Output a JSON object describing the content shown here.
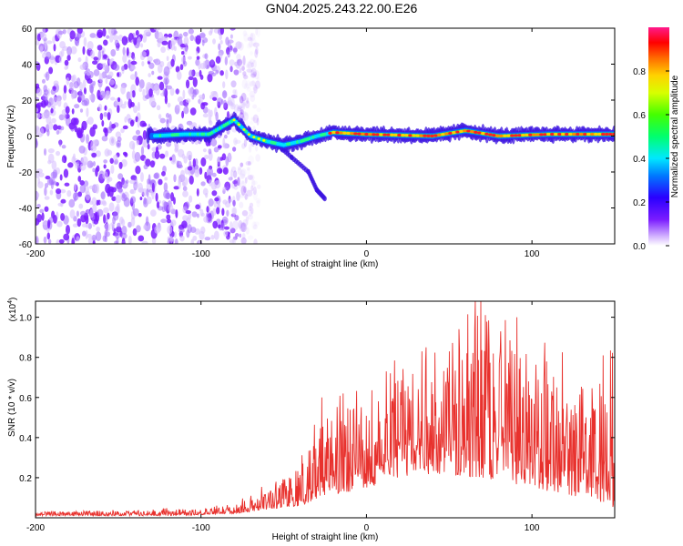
{
  "title": "GN04.2025.243.22.00.E26",
  "colors": {
    "snr_line": "#e8312d",
    "speckle": "#7b2cff",
    "spectrogram_bg": "#ffffff"
  },
  "chart_data": [
    {
      "type": "heatmap",
      "name": "spectrogram",
      "xlabel": "Height of straight line (km)",
      "ylabel": "Frequency (Hz)",
      "xlim": [
        -200,
        150
      ],
      "ylim": [
        -60,
        60
      ],
      "xticks": [
        -200,
        -100,
        0,
        100
      ],
      "yticks": [
        60,
        40,
        20,
        0,
        -20,
        -40,
        -60
      ],
      "xtick_labels": [
        "-200",
        "-100",
        "0",
        "100"
      ],
      "ytick_labels": [
        "60",
        "40",
        "20",
        "0",
        "-20",
        "-40",
        "-60"
      ],
      "colorbar": {
        "label": "Normalized spectral amplitude",
        "range": [
          0,
          1
        ],
        "ticks": [
          0,
          0.2,
          0.4,
          0.6,
          0.8
        ],
        "tick_labels": [
          "0.0",
          "0.2",
          "0.4",
          "0.6",
          "0.8"
        ]
      },
      "signal_trace": [
        {
          "x": -130,
          "f": 0
        },
        {
          "x": -110,
          "f": 1
        },
        {
          "x": -95,
          "f": 1
        },
        {
          "x": -80,
          "f": 9
        },
        {
          "x": -70,
          "f": 0
        },
        {
          "x": -60,
          "f": -3
        },
        {
          "x": -50,
          "f": -5
        },
        {
          "x": -40,
          "f": -3
        },
        {
          "x": -30,
          "f": 0
        },
        {
          "x": -20,
          "f": 2
        },
        {
          "x": 0,
          "f": 1
        },
        {
          "x": 40,
          "f": 0
        },
        {
          "x": 60,
          "f": 3
        },
        {
          "x": 80,
          "f": 0
        },
        {
          "x": 110,
          "f": 1
        },
        {
          "x": 150,
          "f": 1
        }
      ],
      "descending_branch": [
        {
          "x": -55,
          "f": -4
        },
        {
          "x": -45,
          "f": -12
        },
        {
          "x": -35,
          "f": -20
        },
        {
          "x": -30,
          "f": -30
        },
        {
          "x": -25,
          "f": -35
        }
      ],
      "noise_region_x": [
        -200,
        -75
      ]
    },
    {
      "type": "line",
      "name": "snr",
      "xlabel": "Height of straight line (km)",
      "ylabel": "SNR (10 * v/v)",
      "y_multiplier": "(x10",
      "y_exponent": "4",
      "y_multiplier_close": ")",
      "xlim": [
        -200,
        150
      ],
      "ylim": [
        0,
        1.08
      ],
      "xticks": [
        -200,
        -100,
        0,
        100
      ],
      "yticks": [
        0.2,
        0.4,
        0.6,
        0.8,
        1
      ],
      "xtick_labels": [
        "-200",
        "-100",
        "0",
        "100"
      ],
      "ytick_labels": [
        "0.2",
        "0.4",
        "0.6",
        "0.8",
        "1.0"
      ],
      "envelope": [
        {
          "x": -200,
          "lo": 0.01,
          "hi": 0.03
        },
        {
          "x": -120,
          "lo": 0.01,
          "hi": 0.04
        },
        {
          "x": -80,
          "lo": 0.02,
          "hi": 0.06
        },
        {
          "x": -60,
          "lo": 0.04,
          "hi": 0.15
        },
        {
          "x": -40,
          "lo": 0.06,
          "hi": 0.28
        },
        {
          "x": -25,
          "lo": 0.1,
          "hi": 0.55
        },
        {
          "x": 0,
          "lo": 0.15,
          "hi": 0.58
        },
        {
          "x": 20,
          "lo": 0.2,
          "hi": 0.75
        },
        {
          "x": 40,
          "lo": 0.22,
          "hi": 0.85
        },
        {
          "x": 70,
          "lo": 0.2,
          "hi": 1.05
        },
        {
          "x": 100,
          "lo": 0.15,
          "hi": 0.88
        },
        {
          "x": 130,
          "lo": 0.1,
          "hi": 0.7
        },
        {
          "x": 150,
          "lo": 0.05,
          "hi": 0.75
        }
      ],
      "peaks": [
        {
          "x": -27,
          "y": 0.6
        },
        {
          "x": -14,
          "y": 0.62
        },
        {
          "x": 12,
          "y": 0.73
        },
        {
          "x": 36,
          "y": 0.85
        },
        {
          "x": 69,
          "y": 1.08
        },
        {
          "x": 91,
          "y": 1.0
        },
        {
          "x": 143,
          "y": 0.81
        }
      ]
    }
  ]
}
